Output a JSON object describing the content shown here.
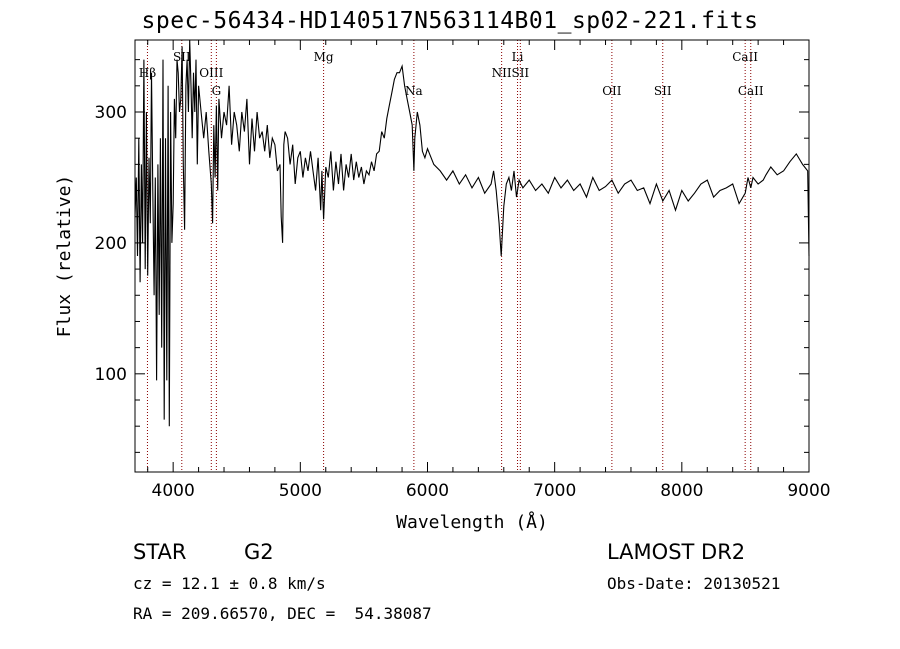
{
  "chart_data": {
    "type": "line",
    "title": "spec-56434-HD140517N563114B01_sp02-221.fits",
    "xlabel": "Wavelength (Å)",
    "ylabel": "Flux (relative)",
    "xlim": [
      3700,
      9000
    ],
    "ylim": [
      25,
      355
    ],
    "x_ticks": [
      4000,
      5000,
      6000,
      7000,
      8000,
      9000
    ],
    "y_ticks": [
      100,
      200,
      300
    ],
    "grid": false,
    "line_color": "#000000",
    "marker_color": "#8b0000",
    "series": [
      {
        "x": [
          3700,
          3710,
          3720,
          3730,
          3740,
          3750,
          3760,
          3770,
          3780,
          3790,
          3800,
          3810,
          3820,
          3830,
          3840,
          3850,
          3860,
          3870,
          3880,
          3890,
          3900,
          3910,
          3920,
          3930,
          3940,
          3950,
          3960,
          3970,
          3980,
          3990,
          4000,
          4010,
          4020,
          4030,
          4040,
          4050,
          4060,
          4070,
          4080,
          4090,
          4100,
          4110,
          4120,
          4130,
          4140,
          4150,
          4160,
          4170,
          4180,
          4190,
          4200,
          4220,
          4240,
          4260,
          4280,
          4300,
          4310,
          4320,
          4330,
          4340,
          4350,
          4360,
          4380,
          4400,
          4420,
          4440,
          4460,
          4480,
          4500,
          4520,
          4540,
          4560,
          4580,
          4600,
          4620,
          4640,
          4660,
          4680,
          4700,
          4720,
          4740,
          4760,
          4780,
          4800,
          4820,
          4840,
          4850,
          4861,
          4870,
          4880,
          4900,
          4920,
          4940,
          4960,
          4980,
          5000,
          5020,
          5040,
          5060,
          5080,
          5100,
          5120,
          5140,
          5160,
          5170,
          5183,
          5200,
          5220,
          5240,
          5260,
          5280,
          5300,
          5320,
          5340,
          5360,
          5380,
          5400,
          5420,
          5440,
          5460,
          5480,
          5500,
          5520,
          5540,
          5560,
          5580,
          5600,
          5620,
          5640,
          5660,
          5680,
          5700,
          5720,
          5740,
          5760,
          5780,
          5800,
          5820,
          5840,
          5860,
          5880,
          5893,
          5900,
          5920,
          5940,
          5960,
          5980,
          6000,
          6050,
          6100,
          6150,
          6200,
          6250,
          6300,
          6350,
          6400,
          6450,
          6500,
          6520,
          6540,
          6563,
          6580,
          6600,
          6620,
          6640,
          6660,
          6680,
          6700,
          6720,
          6750,
          6800,
          6850,
          6900,
          6950,
          7000,
          7050,
          7100,
          7150,
          7200,
          7250,
          7300,
          7350,
          7400,
          7450,
          7500,
          7550,
          7600,
          7650,
          7700,
          7750,
          7800,
          7850,
          7900,
          7950,
          8000,
          8050,
          8100,
          8150,
          8200,
          8250,
          8300,
          8350,
          8400,
          8450,
          8498,
          8520,
          8542,
          8560,
          8600,
          8640,
          8662,
          8700,
          8750,
          8800,
          8850,
          8900,
          8950,
          8990,
          9000
        ],
        "y": [
          220,
          250,
          190,
          280,
          170,
          260,
          200,
          340,
          180,
          300,
          175,
          265,
          215,
          330,
          240,
          160,
          250,
          95,
          260,
          145,
          280,
          120,
          340,
          65,
          280,
          95,
          320,
          60,
          300,
          200,
          230,
          310,
          280,
          340,
          330,
          300,
          310,
          350,
          260,
          210,
          320,
          340,
          300,
          355,
          320,
          280,
          330,
          300,
          340,
          260,
          320,
          300,
          280,
          300,
          270,
          245,
          215,
          290,
          250,
          305,
          240,
          310,
          280,
          300,
          290,
          320,
          275,
          300,
          290,
          270,
          300,
          285,
          310,
          260,
          295,
          270,
          300,
          280,
          285,
          270,
          290,
          265,
          280,
          275,
          255,
          260,
          220,
          200,
          275,
          285,
          280,
          260,
          275,
          245,
          265,
          270,
          250,
          265,
          255,
          270,
          255,
          240,
          265,
          225,
          255,
          218,
          258,
          250,
          270,
          240,
          262,
          245,
          268,
          240,
          260,
          250,
          268,
          248,
          262,
          250,
          258,
          245,
          255,
          252,
          262,
          255,
          268,
          270,
          285,
          280,
          295,
          305,
          315,
          325,
          330,
          330,
          335,
          320,
          310,
          300,
          290,
          255,
          280,
          300,
          290,
          270,
          265,
          272,
          260,
          255,
          248,
          255,
          245,
          252,
          242,
          250,
          238,
          245,
          255,
          240,
          215,
          190,
          228,
          245,
          250,
          240,
          255,
          235,
          248,
          242,
          248,
          240,
          245,
          238,
          250,
          242,
          248,
          240,
          245,
          235,
          250,
          240,
          243,
          248,
          238,
          245,
          248,
          240,
          242,
          230,
          245,
          232,
          240,
          225,
          240,
          232,
          238,
          245,
          248,
          235,
          240,
          242,
          245,
          230,
          238,
          250,
          242,
          250,
          245,
          248,
          252,
          258,
          252,
          255,
          262,
          268,
          260,
          255,
          190
        ]
      }
    ],
    "line_markers": [
      {
        "label": "Hβ",
        "x": 3798,
        "row": "lower"
      },
      {
        "label": "SII",
        "x": 4068,
        "row": "upper"
      },
      {
        "label": "OIII",
        "x": 4300,
        "row": "lower"
      },
      {
        "label": "G",
        "x": 4340,
        "row": "lower2"
      },
      {
        "label": "Mg",
        "x": 5183,
        "row": "upper"
      },
      {
        "label": "Na",
        "x": 5893,
        "row": "lower2"
      },
      {
        "label": "NII",
        "x": 6583,
        "row": "lower"
      },
      {
        "label": "Li",
        "x": 6708,
        "row": "upper"
      },
      {
        "label": "SII",
        "x": 6730,
        "row": "lower"
      },
      {
        "label": "OII",
        "x": 7450,
        "row": "lower2"
      },
      {
        "label": "SII",
        "x": 7850,
        "row": "lower2"
      },
      {
        "label": "CaII",
        "x": 8498,
        "row": "upper"
      },
      {
        "label": "CaII",
        "x": 8542,
        "row": "lower2"
      }
    ]
  },
  "info": {
    "object_class": "STAR",
    "subclass": "G2",
    "survey": "LAMOST DR2",
    "cz": "cz = 12.1 ± 0.8 km/s",
    "obs_date": "Obs-Date: 20130521",
    "radec": "RA = 209.66570, DEC =  54.38087"
  }
}
